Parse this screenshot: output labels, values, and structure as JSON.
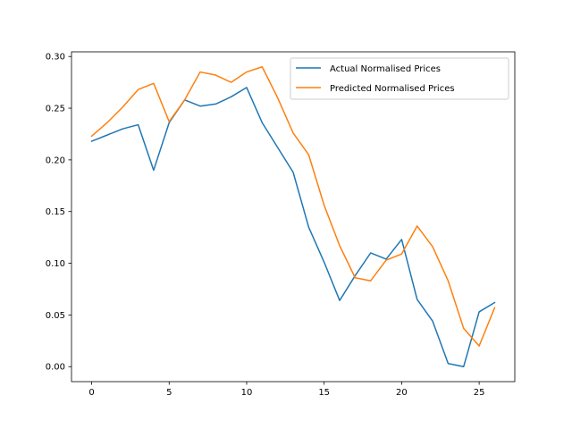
{
  "chart_data": {
    "type": "line",
    "x": [
      0,
      1,
      2,
      3,
      4,
      5,
      6,
      7,
      8,
      9,
      10,
      11,
      12,
      13,
      14,
      15,
      16,
      17,
      18,
      19,
      20,
      21,
      22,
      23,
      24,
      25,
      26
    ],
    "series": [
      {
        "name": "Actual Normalised Prices",
        "color": "#1f77b4",
        "values": [
          0.218,
          0.224,
          0.23,
          0.234,
          0.19,
          0.236,
          0.258,
          0.252,
          0.254,
          0.261,
          0.27,
          0.236,
          0.212,
          0.188,
          0.135,
          0.101,
          0.064,
          0.088,
          0.11,
          0.104,
          0.123,
          0.065,
          0.044,
          0.003,
          0.0,
          0.053,
          0.062
        ]
      },
      {
        "name": "Predicted Normalised Prices",
        "color": "#ff7f0e",
        "values": [
          0.223,
          0.236,
          0.251,
          0.268,
          0.274,
          0.237,
          0.258,
          0.285,
          0.282,
          0.275,
          0.285,
          0.29,
          0.26,
          0.226,
          0.205,
          0.156,
          0.117,
          0.086,
          0.083,
          0.103,
          0.109,
          0.136,
          0.116,
          0.083,
          0.037,
          0.02,
          0.057
        ]
      }
    ],
    "xlim": [
      -1.3,
      27.3
    ],
    "ylim": [
      -0.0145,
      0.3045
    ],
    "xticks": [
      0,
      5,
      10,
      15,
      20,
      25
    ],
    "yticks": [
      0.0,
      0.05,
      0.1,
      0.15,
      0.2,
      0.25,
      0.3
    ],
    "ytick_labels": [
      "0.00",
      "0.05",
      "0.10",
      "0.15",
      "0.20",
      "0.25",
      "0.30"
    ],
    "legend_position": "upper-right",
    "grid": false
  }
}
